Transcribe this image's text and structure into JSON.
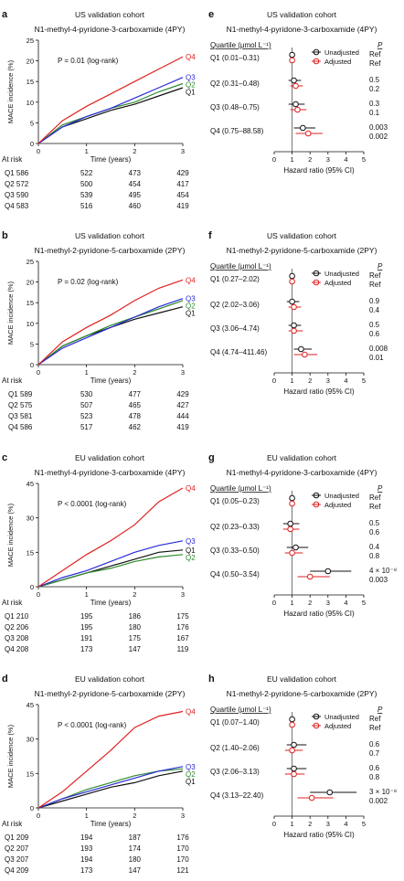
{
  "colors": {
    "Q1": "#111111",
    "Q2": "#2e8b2e",
    "Q3": "#2a2ad8",
    "Q4": "#e02020",
    "unadj": "#111111",
    "adj": "#e02020"
  },
  "chart_data": [
    {
      "id": "a",
      "type": "line",
      "label": "a",
      "cohort": "US validation cohort",
      "title": "N1-methyl-4-pyridone-3-carboxamide (4PY)",
      "ylabel": "MACE incidence (%)",
      "xlabel": "Time (years)",
      "ylim": [
        0,
        25
      ],
      "yticks": [
        0,
        5,
        10,
        15,
        20,
        25
      ],
      "xlim": [
        0,
        3
      ],
      "xticks": [
        0,
        1,
        2,
        3
      ],
      "pvalue": "P = 0.01 (log-rank)",
      "at_risk_label": "At risk",
      "series": [
        {
          "name": "Q1",
          "x": [
            0,
            0.5,
            1,
            1.5,
            2,
            2.5,
            3
          ],
          "y": [
            0,
            4,
            6,
            8,
            9.5,
            11.5,
            13.5
          ],
          "at_risk": [
            "Q1 586",
            "522",
            "473",
            "429"
          ]
        },
        {
          "name": "Q2",
          "x": [
            0,
            0.5,
            1,
            1.5,
            2,
            2.5,
            3
          ],
          "y": [
            0,
            4.5,
            6.5,
            8.5,
            10,
            12.5,
            14.5
          ],
          "at_risk": [
            "Q2 572",
            "500",
            "454",
            "417"
          ]
        },
        {
          "name": "Q3",
          "x": [
            0,
            0.5,
            1,
            1.5,
            2,
            2.5,
            3
          ],
          "y": [
            0,
            4,
            6.5,
            8.5,
            11,
            13.5,
            16
          ],
          "at_risk": [
            "Q3 590",
            "539",
            "495",
            "454"
          ]
        },
        {
          "name": "Q4",
          "x": [
            0,
            0.5,
            1,
            1.5,
            2,
            2.5,
            3
          ],
          "y": [
            0,
            5.5,
            9,
            12,
            15,
            18,
            21
          ],
          "at_risk": [
            "Q4 583",
            "516",
            "460",
            "419"
          ]
        }
      ]
    },
    {
      "id": "b",
      "type": "line",
      "label": "b",
      "cohort": "US validation cohort",
      "title": "N1-methyl-2-pyridone-5-carboxamide (2PY)",
      "ylabel": "MACE incidence (%)",
      "xlabel": "Time (years)",
      "ylim": [
        0,
        25
      ],
      "yticks": [
        0,
        5,
        10,
        15,
        20,
        25
      ],
      "xlim": [
        0,
        3
      ],
      "xticks": [
        0,
        1,
        2,
        3
      ],
      "pvalue": "P = 0.02 (log-rank)",
      "at_risk_label": "At risk",
      "series": [
        {
          "name": "Q1",
          "x": [
            0,
            0.5,
            1,
            1.5,
            2,
            2.5,
            3
          ],
          "y": [
            0,
            4.5,
            7,
            9,
            11,
            12.5,
            14
          ]
        },
        {
          "name": "Q2",
          "x": [
            0,
            0.5,
            1,
            1.5,
            2,
            2.5,
            3
          ],
          "y": [
            0,
            4.5,
            7,
            9.5,
            11.5,
            13.5,
            15.5
          ]
        },
        {
          "name": "Q3",
          "x": [
            0,
            0.5,
            1,
            1.5,
            2,
            2.5,
            3
          ],
          "y": [
            0,
            4,
            6.5,
            9,
            11.5,
            14,
            16
          ]
        },
        {
          "name": "Q4",
          "x": [
            0,
            0.5,
            1,
            1.5,
            2,
            2.5,
            3
          ],
          "y": [
            0,
            5.5,
            9,
            12,
            15.5,
            18.5,
            20.5
          ]
        }
      ],
      "at_risk": [
        [
          "Q1",
          "589",
          "530",
          "477",
          "429"
        ],
        [
          "Q2",
          "575",
          "507",
          "465",
          "427"
        ],
        [
          "Q3",
          "581",
          "523",
          "478",
          "444"
        ],
        [
          "Q4",
          "586",
          "517",
          "462",
          "419"
        ]
      ]
    },
    {
      "id": "c",
      "type": "line",
      "label": "c",
      "cohort": "EU validation cohort",
      "title": "N1-methyl-4-pyridone-3-carboxamide (4PY)",
      "ylabel": "MACE incidence (%)",
      "xlabel": "Time (years)",
      "ylim": [
        0,
        45
      ],
      "yticks": [
        0,
        15,
        30,
        45
      ],
      "xlim": [
        0,
        3
      ],
      "xticks": [
        0,
        1,
        2,
        3
      ],
      "pvalue": "P < 0.0001 (log-rank)",
      "at_risk_label": "At risk",
      "series": [
        {
          "name": "Q1",
          "x": [
            0,
            0.5,
            1,
            1.5,
            2,
            2.5,
            3
          ],
          "y": [
            0,
            3,
            6,
            9,
            12,
            15,
            16
          ]
        },
        {
          "name": "Q2",
          "x": [
            0,
            0.5,
            1,
            1.5,
            2,
            2.5,
            3
          ],
          "y": [
            0,
            3,
            6,
            8,
            11,
            13,
            14
          ]
        },
        {
          "name": "Q3",
          "x": [
            0,
            0.5,
            1,
            1.5,
            2,
            2.5,
            3
          ],
          "y": [
            0,
            4,
            7,
            11,
            15,
            18,
            20
          ]
        },
        {
          "name": "Q4",
          "x": [
            0,
            0.5,
            1,
            1.5,
            2,
            2.5,
            3
          ],
          "y": [
            0,
            7,
            14,
            20,
            27,
            37,
            43
          ]
        }
      ],
      "at_risk": [
        [
          "Q1 210",
          "195",
          "186",
          "175"
        ],
        [
          "Q2 206",
          "195",
          "180",
          "176"
        ],
        [
          "Q3 208",
          "191",
          "175",
          "167"
        ],
        [
          "Q4 208",
          "173",
          "147",
          "119"
        ]
      ]
    },
    {
      "id": "d",
      "type": "line",
      "label": "d",
      "cohort": "EU validation cohort",
      "title": "N1-methyl-2-pyridone-5-carboxamide (2PY)",
      "ylabel": "MACE incidence (%)",
      "xlabel": "Time (years)",
      "ylim": [
        0,
        45
      ],
      "yticks": [
        0,
        15,
        30,
        45
      ],
      "xlim": [
        0,
        3
      ],
      "xticks": [
        0,
        1,
        2,
        3
      ],
      "pvalue": "P < 0.0001 (log-rank)",
      "at_risk_label": "At risk",
      "series": [
        {
          "name": "Q1",
          "x": [
            0,
            0.5,
            1,
            1.5,
            2,
            2.5,
            3
          ],
          "y": [
            0,
            3,
            6,
            9,
            11,
            14,
            16
          ]
        },
        {
          "name": "Q2",
          "x": [
            0,
            0.5,
            1,
            1.5,
            2,
            2.5,
            3
          ],
          "y": [
            0,
            4,
            8,
            11,
            14,
            16,
            17
          ]
        },
        {
          "name": "Q3",
          "x": [
            0,
            0.5,
            1,
            1.5,
            2,
            2.5,
            3
          ],
          "y": [
            0,
            4,
            7,
            10,
            13,
            16,
            18
          ]
        },
        {
          "name": "Q4",
          "x": [
            0,
            0.5,
            1,
            1.5,
            2,
            2.5,
            3
          ],
          "y": [
            0,
            7,
            16,
            25,
            35,
            40,
            42
          ]
        }
      ],
      "at_risk": [
        [
          "Q1 209",
          "194",
          "187",
          "176"
        ],
        [
          "Q2 207",
          "193",
          "174",
          "170"
        ],
        [
          "Q3 207",
          "194",
          "180",
          "170"
        ],
        [
          "Q4 209",
          "173",
          "147",
          "121"
        ]
      ]
    },
    {
      "id": "e",
      "type": "forest",
      "label": "e",
      "cohort": "US validation cohort",
      "title": "N1-methyl-4-pyridone-3-carboxamide (4PY)",
      "quartile_header": "Quartile (μmol L⁻¹)",
      "p_header": "P",
      "xlabel": "Hazard ratio (95% CI)",
      "xlim": [
        0,
        5
      ],
      "xticks": [
        0,
        1,
        2,
        3,
        4,
        5
      ],
      "legend": [
        "Unadjusted",
        "Adjusted"
      ],
      "rows": [
        {
          "label": "Q1 (0.01–0.31)",
          "unadj": [
            1,
            1,
            1
          ],
          "adj": [
            1,
            1,
            1
          ],
          "p": [
            "Ref",
            "Ref"
          ]
        },
        {
          "label": "Q2 (0.31–0.48)",
          "unadj": [
            1.1,
            0.8,
            1.5
          ],
          "adj": [
            1.2,
            0.9,
            1.6
          ],
          "p": [
            "0.5",
            "0.2"
          ]
        },
        {
          "label": "Q3 (0.48–0.75)",
          "unadj": [
            1.2,
            0.8,
            1.7
          ],
          "adj": [
            1.3,
            0.9,
            1.8
          ],
          "p": [
            "0.3",
            "0.1"
          ]
        },
        {
          "label": "Q4 (0.75–88.58)",
          "unadj": [
            1.6,
            1.1,
            2.3
          ],
          "adj": [
            1.9,
            1.2,
            2.7
          ],
          "p": [
            "0.003",
            "0.002"
          ]
        }
      ]
    },
    {
      "id": "f",
      "type": "forest",
      "label": "f",
      "cohort": "US validation cohort",
      "title": "N1-methyl-2-pyridone-5-carboxamide (2PY)",
      "quartile_header": "Quartile (μmol L⁻¹)",
      "p_header": "P",
      "xlabel": "Hazard ratio (95% CI)",
      "xlim": [
        0,
        5
      ],
      "xticks": [
        0,
        1,
        2,
        3,
        4,
        5
      ],
      "legend": [
        "Unadjusted",
        "Adjusted"
      ],
      "rows": [
        {
          "label": "Q1 (0.27–2.02)",
          "unadj": [
            1,
            1,
            1
          ],
          "adj": [
            1,
            1,
            1
          ],
          "p": [
            "Ref",
            "Ref"
          ]
        },
        {
          "label": "Q2 (2.02–3.06)",
          "unadj": [
            1.0,
            0.7,
            1.4
          ],
          "adj": [
            1.1,
            0.8,
            1.5
          ],
          "p": [
            "0.9",
            "0.4"
          ]
        },
        {
          "label": "Q3 (3.06–4.74)",
          "unadj": [
            1.1,
            0.8,
            1.5
          ],
          "adj": [
            1.1,
            0.8,
            1.6
          ],
          "p": [
            "0.5",
            "0.6"
          ]
        },
        {
          "label": "Q4 (4.74–411.46)",
          "unadj": [
            1.5,
            1.1,
            2.1
          ],
          "adj": [
            1.7,
            1.1,
            2.4
          ],
          "p": [
            "0.008",
            "0.01"
          ]
        }
      ]
    },
    {
      "id": "g",
      "type": "forest",
      "label": "g",
      "cohort": "EU validation cohort",
      "title": "N1-methyl-4-pyridone-3-carboxamide (4PY)",
      "quartile_header": "Quartile (μmol L⁻¹)",
      "p_header": "P",
      "xlabel": "Hazard ratio (95% CI)",
      "xlim": [
        0,
        5
      ],
      "xticks": [
        0,
        1,
        2,
        3,
        4,
        5
      ],
      "legend": [
        "Unadjusted",
        "Adjusted"
      ],
      "rows": [
        {
          "label": "Q1 (0.05–0.23)",
          "unadj": [
            1,
            1,
            1
          ],
          "adj": [
            1,
            1,
            1
          ],
          "p": [
            "Ref",
            "Ref"
          ]
        },
        {
          "label": "Q2 (0.23–0.33)",
          "unadj": [
            0.9,
            0.5,
            1.4
          ],
          "adj": [
            0.9,
            0.5,
            1.4
          ],
          "p": [
            "0.5",
            "0.6"
          ]
        },
        {
          "label": "Q3 (0.33–0.50)",
          "unadj": [
            1.2,
            0.7,
            1.9
          ],
          "adj": [
            1.0,
            0.6,
            1.6
          ],
          "p": [
            "0.4",
            "0.8"
          ]
        },
        {
          "label": "Q4 (0.50–3.54)",
          "unadj": [
            3.0,
            2.0,
            4.3
          ],
          "adj": [
            2.0,
            1.3,
            3.1
          ],
          "p": [
            "4 × 10⁻⁸",
            "0.003"
          ]
        }
      ]
    },
    {
      "id": "h",
      "type": "forest",
      "label": "h",
      "cohort": "EU validation cohort",
      "title": "N1-methyl-2-pyridone-5-carboxamide (2PY)",
      "quartile_header": "Quartile (μmol L⁻¹)",
      "p_header": "P",
      "xlabel": "Hazard ratio (95% CI)",
      "xlim": [
        0,
        5
      ],
      "xticks": [
        0,
        1,
        2,
        3,
        4,
        5
      ],
      "legend": [
        "Unadjusted",
        "Adjusted"
      ],
      "rows": [
        {
          "label": "Q1 (0.07–1.40)",
          "unadj": [
            1,
            1,
            1
          ],
          "adj": [
            1,
            1,
            1
          ],
          "p": [
            "Ref",
            "Ref"
          ]
        },
        {
          "label": "Q2 (1.40–2.06)",
          "unadj": [
            1.1,
            0.7,
            1.8
          ],
          "adj": [
            1.0,
            0.6,
            1.6
          ],
          "p": [
            "0.6",
            "0.7"
          ]
        },
        {
          "label": "Q3 (2.06–3.13)",
          "unadj": [
            1.1,
            0.7,
            1.8
          ],
          "adj": [
            1.1,
            0.6,
            1.7
          ],
          "p": [
            "0.6",
            "0.8"
          ]
        },
        {
          "label": "Q4 (3.13–22.40)",
          "unadj": [
            3.1,
            2.0,
            4.6
          ],
          "adj": [
            2.1,
            1.3,
            3.3
          ],
          "p": [
            "3 × 10⁻⁸",
            "0.002"
          ]
        }
      ]
    }
  ]
}
